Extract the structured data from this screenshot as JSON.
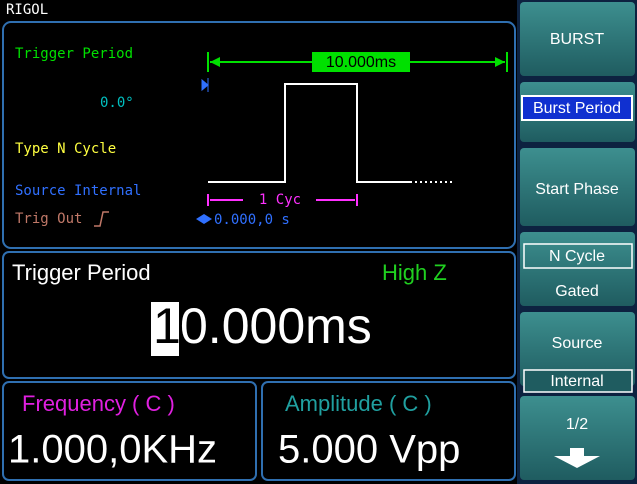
{
  "brand": "RIGOL",
  "burst_panel": {
    "title": "Trigger Period",
    "period": "10.000ms",
    "phase": "0.0°",
    "type": "Type N Cycle",
    "source": "Source Internal",
    "trig_out": "Trig Out",
    "cycles": "1 Cyc",
    "delay": "0.000,0 s"
  },
  "edit_panel": {
    "label": "Trigger Period",
    "load": "High Z",
    "value_parts": [
      "1",
      "0.000ms"
    ]
  },
  "status": {
    "frequency_label": "Frequency ( C )",
    "frequency": "1.000,0KHz",
    "amplitude_label": "Amplitude ( C )",
    "amplitude": "5.000 Vpp"
  },
  "menu": {
    "title": "BURST",
    "items": [
      {
        "label": "Burst Period",
        "selected": true
      },
      {
        "label": "Start Phase"
      },
      {
        "options": [
          "N Cycle",
          "Gated"
        ]
      },
      {
        "label": "Source",
        "value": "Internal"
      },
      {
        "label": "1/2"
      }
    ]
  }
}
